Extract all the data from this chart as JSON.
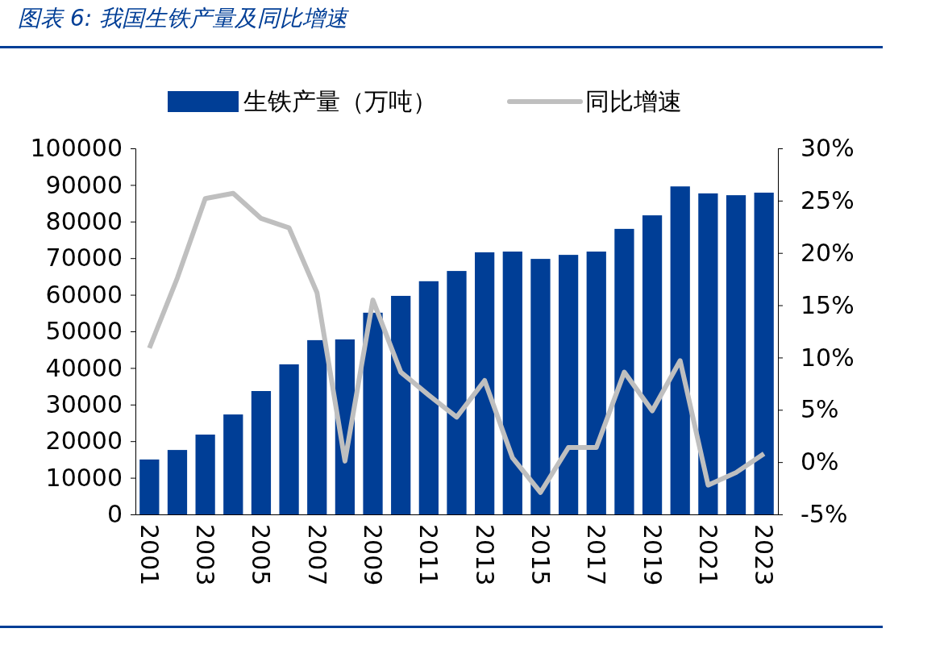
{
  "chart_data": {
    "type": "bar",
    "title": "图表 6:  我国生铁产量及同比增速",
    "categories": [
      "2001",
      null,
      "2003",
      null,
      "2005",
      null,
      "2007",
      null,
      "2009",
      null,
      "2011",
      null,
      "2013",
      null,
      "2015",
      null,
      "2017",
      null,
      "2019",
      null,
      "2021",
      null,
      "2023"
    ],
    "series": [
      {
        "name": "生铁产量（万吨）",
        "color": "#003e96",
        "values": [
          15000,
          17600,
          21800,
          27300,
          33700,
          41000,
          47600,
          47800,
          55100,
          59700,
          63700,
          66500,
          71600,
          71800,
          69800,
          70900,
          71800,
          78000,
          81700,
          89600,
          87700,
          87200,
          87900
        ]
      },
      {
        "name": "同比增速",
        "type": "line",
        "axis": "y2",
        "color": "#bfbfbf",
        "values": [
          10.9,
          17.6,
          25.2,
          25.7,
          23.3,
          22.4,
          16.2,
          0.1,
          15.5,
          8.6,
          6.4,
          4.3,
          7.8,
          0.4,
          -2.9,
          1.4,
          1.4,
          8.6,
          4.9,
          9.7,
          -2.2,
          -1.0,
          0.8
        ]
      }
    ],
    "ylim": [
      0,
      100000
    ],
    "yticks": [
      0,
      10000,
      20000,
      30000,
      40000,
      50000,
      60000,
      70000,
      80000,
      90000,
      100000
    ],
    "y2lim": [
      -5,
      30
    ],
    "y2ticks": [
      {
        "value": -5,
        "label": "-5%"
      },
      {
        "value": 0,
        "label": "0%"
      },
      {
        "value": 5,
        "label": "5%"
      },
      {
        "value": 10,
        "label": "10%"
      },
      {
        "value": 15,
        "label": "15%"
      },
      {
        "value": 20,
        "label": "20%"
      },
      {
        "value": 25,
        "label": "25%"
      },
      {
        "value": 30,
        "label": "30%"
      }
    ],
    "legend": "top",
    "grid": false,
    "line_style": "solid",
    "marker": "none"
  }
}
